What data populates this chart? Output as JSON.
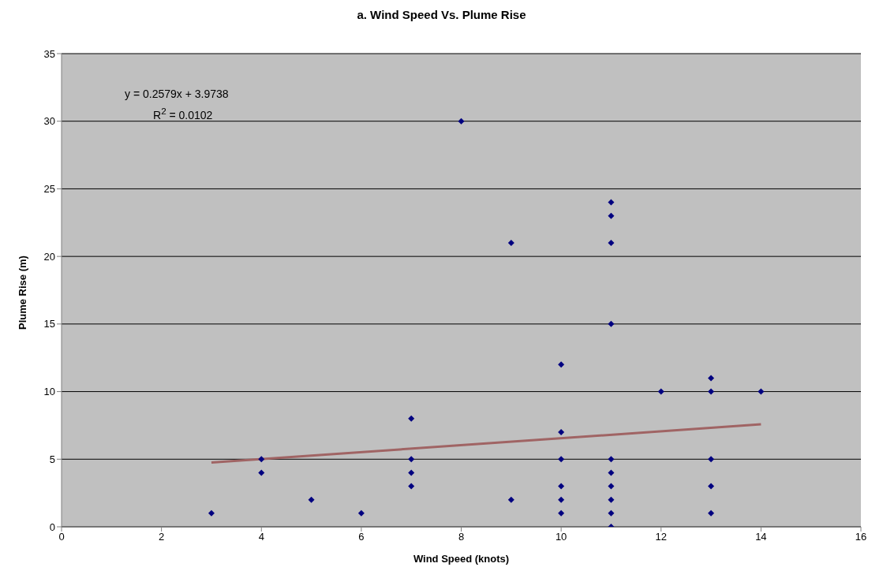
{
  "chart_data": {
    "type": "scatter",
    "title": "a. Wind Speed Vs. Plume Rise",
    "xlabel": "Wind Speed (knots)",
    "ylabel": "Plume Rise (m)",
    "annotations": [
      "y = 0.2579x + 3.9738",
      "R$^{2}$ = 0.0102"
    ],
    "series": [
      {
        "color": "#000080",
        "x": [
          3,
          4,
          4,
          5,
          6,
          7,
          7,
          7,
          7,
          8,
          9,
          9,
          10,
          10,
          10,
          10,
          10,
          10,
          11,
          11,
          11,
          11,
          11,
          11,
          11,
          11,
          11,
          11,
          12,
          13,
          13,
          13,
          13,
          13,
          14
        ],
        "values": [
          1,
          5,
          4,
          2,
          1,
          8,
          5,
          4,
          3,
          30,
          21,
          2,
          12,
          7,
          5,
          3,
          2,
          1,
          24,
          23,
          21,
          15,
          5,
          4,
          3,
          2,
          1,
          0,
          10,
          11,
          10,
          5,
          3,
          1,
          10
        ]
      },
      {
        "type": "line",
        "marker": "none",
        "color": "#a06464",
        "x": [
          3,
          14
        ],
        "values": [
          4.75,
          7.58
        ]
      }
    ],
    "marker": "diamond",
    "xlim": [
      0,
      16
    ],
    "xticks": [
      0,
      2,
      4,
      6,
      8,
      10,
      12,
      14,
      16
    ],
    "ylim": [
      0,
      35
    ],
    "yticks": [
      0,
      5,
      10,
      15,
      20,
      25,
      30,
      35
    ],
    "grid": "y",
    "legend": false
  }
}
